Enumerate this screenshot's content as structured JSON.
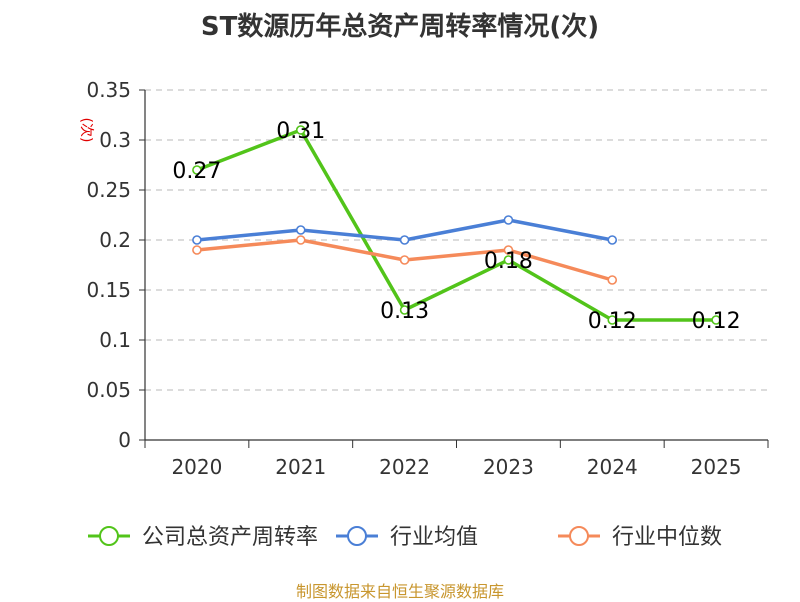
{
  "chart_data": {
    "type": "line",
    "title": "ST数源历年总资产周转率情况(次)",
    "ylabel": "(次)",
    "xlabel": "",
    "categories": [
      "2020",
      "2021",
      "2022",
      "2023",
      "2024",
      "2025"
    ],
    "ylim": [
      0,
      0.35
    ],
    "yticks": [
      "0",
      "0.05",
      "0.1",
      "0.15",
      "0.2",
      "0.25",
      "0.3",
      "0.35"
    ],
    "grid": true,
    "legend_position": "bottom",
    "series": [
      {
        "name": "公司总资产周转率",
        "color": "#52c41a",
        "values": [
          0.27,
          0.31,
          0.13,
          0.18,
          0.12,
          0.12
        ],
        "labels": [
          "0.27",
          "0.31",
          "0.13",
          "0.18",
          "0.12",
          "0.12"
        ]
      },
      {
        "name": "行业均值",
        "color": "#4a7fd6",
        "values": [
          0.2,
          0.21,
          0.2,
          0.22,
          0.2,
          null
        ]
      },
      {
        "name": "行业中位数",
        "color": "#f58a5a",
        "values": [
          0.19,
          0.2,
          0.18,
          0.19,
          0.16,
          null
        ]
      }
    ]
  },
  "source": "制图数据来自恒生聚源数据库"
}
